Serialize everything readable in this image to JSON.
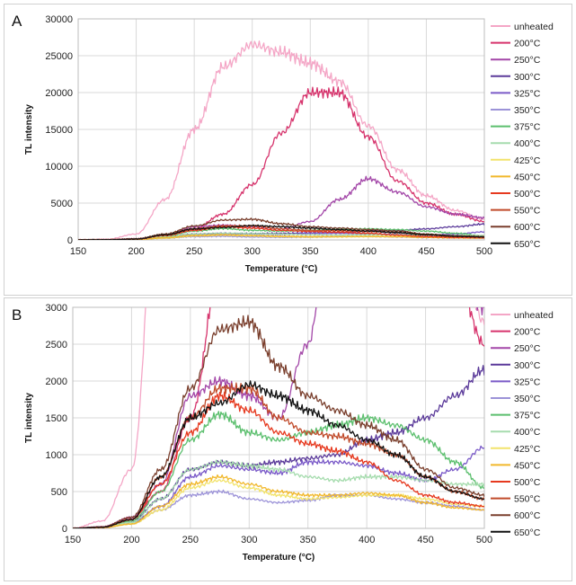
{
  "figure": {
    "legend": [
      {
        "name": "unheated",
        "color": "#f4a6c6"
      },
      {
        "name": "200°C",
        "color": "#d6336c"
      },
      {
        "name": "250°C",
        "color": "#a347a8"
      },
      {
        "name": "300°C",
        "color": "#5b3a9a"
      },
      {
        "name": "325°C",
        "color": "#7a5ac8"
      },
      {
        "name": "350°C",
        "color": "#9c93d8"
      },
      {
        "name": "375°C",
        "color": "#5cbf6e"
      },
      {
        "name": "400°C",
        "color": "#a6dcae"
      },
      {
        "name": "425°C",
        "color": "#f2e36b"
      },
      {
        "name": "450°C",
        "color": "#f1b82b"
      },
      {
        "name": "500°C",
        "color": "#e6391f"
      },
      {
        "name": "550°C",
        "color": "#c04a2a"
      },
      {
        "name": "600°C",
        "color": "#7a3f2d"
      },
      {
        "name": "650°C",
        "color": "#111111"
      }
    ]
  },
  "chart_data": [
    {
      "panel": "A",
      "type": "line",
      "xlabel": "Temperature (°C)",
      "ylabel": "TL intensity",
      "xlim": [
        150,
        500
      ],
      "ylim": [
        0,
        30000
      ],
      "x_ticks": [
        150,
        200,
        250,
        300,
        350,
        400,
        450,
        500
      ],
      "y_ticks": [
        0,
        5000,
        10000,
        15000,
        20000,
        25000,
        30000
      ],
      "grid": true,
      "legend_position": "right",
      "x": [
        150,
        175,
        200,
        225,
        250,
        275,
        300,
        325,
        350,
        375,
        400,
        425,
        450,
        475,
        500
      ],
      "series": [
        {
          "name": "unheated",
          "values": [
            0,
            100,
            800,
            5500,
            15000,
            23500,
            26500,
            25500,
            24000,
            21500,
            15500,
            9500,
            6000,
            4000,
            2800
          ]
        },
        {
          "name": "200°C",
          "values": [
            0,
            20,
            150,
            500,
            1500,
            3500,
            7500,
            14500,
            20000,
            20000,
            14000,
            8000,
            5000,
            3500,
            2500
          ]
        },
        {
          "name": "250°C",
          "values": [
            0,
            20,
            150,
            600,
            1800,
            2000,
            1800,
            1500,
            2500,
            5500,
            8300,
            6500,
            4500,
            3500,
            3000
          ]
        },
        {
          "name": "300°C",
          "values": [
            0,
            20,
            100,
            400,
            800,
            900,
            850,
            900,
            950,
            1000,
            1200,
            1300,
            1500,
            1800,
            2150
          ]
        },
        {
          "name": "325°C",
          "values": [
            0,
            15,
            80,
            300,
            700,
            850,
            800,
            750,
            900,
            900,
            850,
            750,
            650,
            800,
            1100
          ]
        },
        {
          "name": "350°C",
          "values": [
            0,
            10,
            60,
            250,
            450,
            500,
            400,
            350,
            380,
            450,
            450,
            400,
            350,
            300,
            250
          ]
        },
        {
          "name": "375°C",
          "values": [
            0,
            15,
            100,
            500,
            1200,
            1550,
            1300,
            1200,
            1300,
            1400,
            1500,
            1400,
            1200,
            900,
            550
          ]
        },
        {
          "name": "400°C",
          "values": [
            0,
            12,
            80,
            400,
            800,
            900,
            850,
            800,
            700,
            650,
            700,
            700,
            650,
            600,
            600
          ]
        },
        {
          "name": "425°C",
          "values": [
            0,
            10,
            60,
            250,
            550,
            650,
            550,
            450,
            400,
            420,
            450,
            450,
            400,
            330,
            300
          ]
        },
        {
          "name": "450°C",
          "values": [
            0,
            10,
            60,
            300,
            600,
            700,
            600,
            500,
            450,
            450,
            480,
            450,
            350,
            280,
            250
          ]
        },
        {
          "name": "500°C",
          "values": [
            0,
            15,
            120,
            600,
            1300,
            1800,
            1600,
            1300,
            1150,
            1050,
            900,
            650,
            450,
            350,
            300
          ]
        },
        {
          "name": "550°C",
          "values": [
            0,
            15,
            120,
            700,
            1500,
            1900,
            1900,
            1500,
            1300,
            1250,
            1150,
            1000,
            700,
            500,
            400
          ]
        },
        {
          "name": "600°C",
          "values": [
            0,
            20,
            150,
            800,
            1900,
            2700,
            2800,
            2200,
            1800,
            1600,
            1400,
            1200,
            800,
            550,
            450
          ]
        },
        {
          "name": "650°C",
          "values": [
            0,
            15,
            120,
            700,
            1500,
            1700,
            1950,
            1800,
            1600,
            1400,
            1200,
            1000,
            700,
            500,
            400
          ]
        }
      ]
    },
    {
      "panel": "B",
      "type": "line",
      "xlabel": "Temperature (°C)",
      "ylabel": "TL intensity",
      "xlim": [
        150,
        500
      ],
      "ylim": [
        0,
        3000
      ],
      "x_ticks": [
        150,
        200,
        250,
        300,
        350,
        400,
        450,
        500
      ],
      "y_ticks": [
        0,
        500,
        1000,
        1500,
        2000,
        2500,
        3000
      ],
      "grid": true,
      "legend_position": "right",
      "note": "same data as panel A, y-axis zoomed to 0-3000"
    }
  ],
  "panels": {
    "a": {
      "letter": "A"
    },
    "b": {
      "letter": "B"
    }
  }
}
